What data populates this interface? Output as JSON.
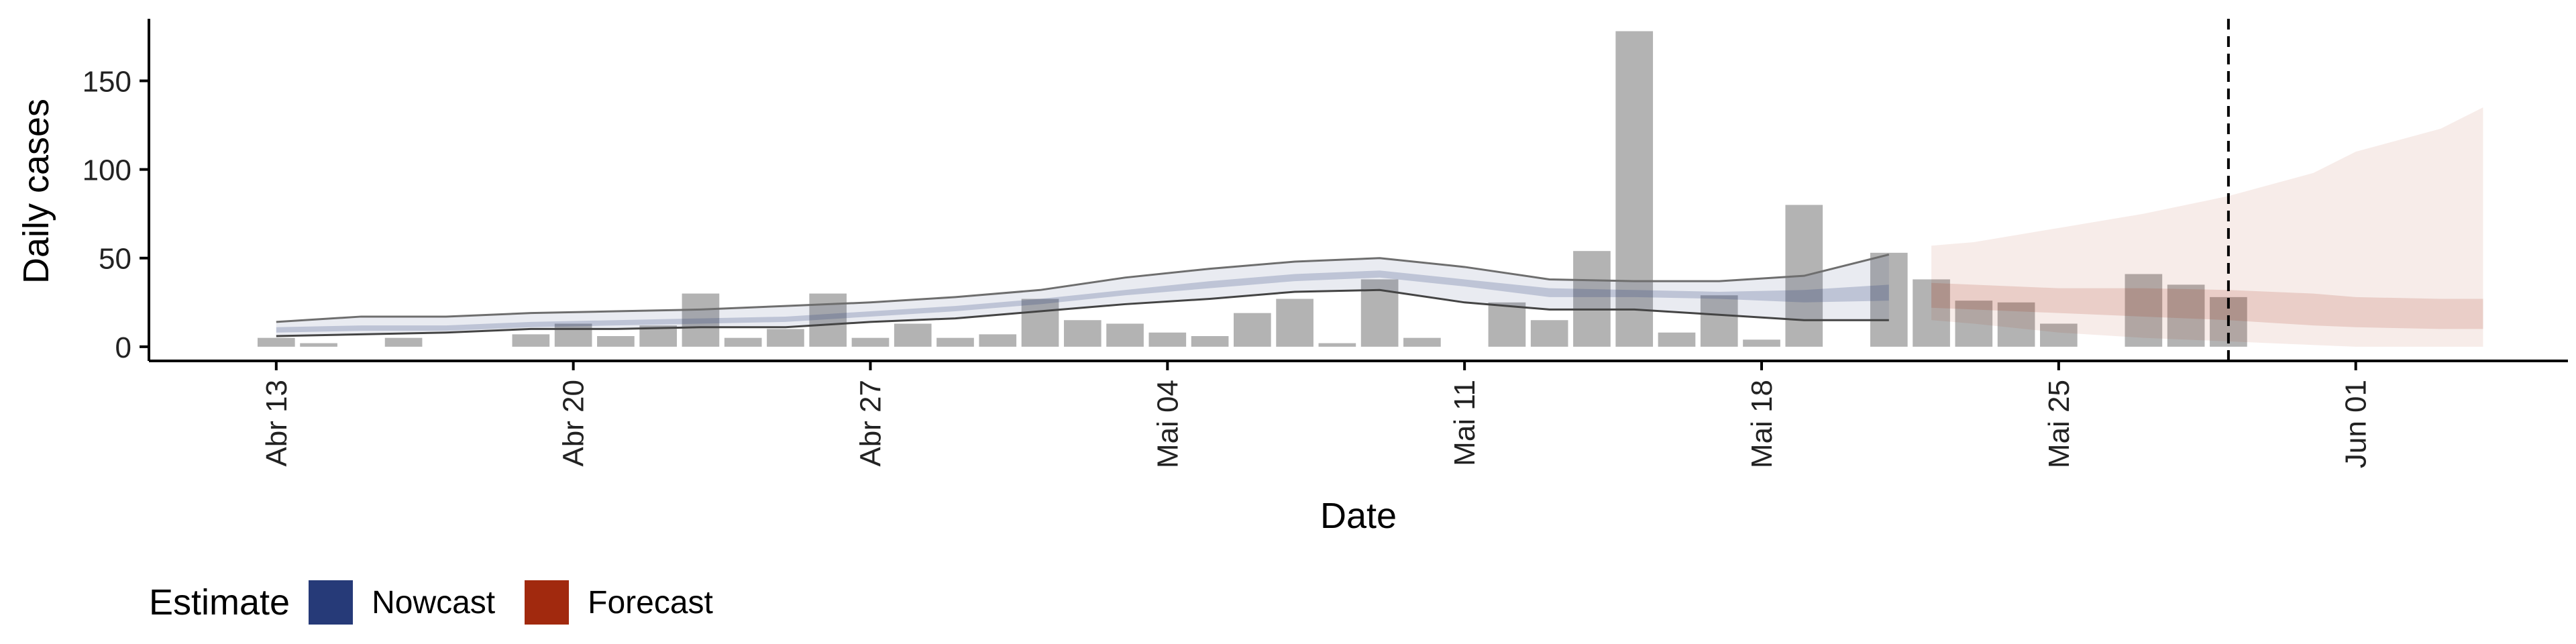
{
  "chart_data": {
    "type": "bar",
    "title": "",
    "xlabel": "Date",
    "ylabel": "Daily cases",
    "x_range": [
      "2020-04-10",
      "2020-06-06"
    ],
    "ylim": [
      -8,
      185
    ],
    "y_ticks": [
      0,
      50,
      100,
      150
    ],
    "x_ticks": [
      {
        "date": "2020-04-13",
        "label": "Abr 13"
      },
      {
        "date": "2020-04-20",
        "label": "Abr 20"
      },
      {
        "date": "2020-04-27",
        "label": "Abr 27"
      },
      {
        "date": "2020-05-04",
        "label": "Mai 04"
      },
      {
        "date": "2020-05-11",
        "label": "Mai 11"
      },
      {
        "date": "2020-05-18",
        "label": "Mai 18"
      },
      {
        "date": "2020-05-25",
        "label": "Mai 25"
      },
      {
        "date": "2020-06-01",
        "label": "Jun 01"
      }
    ],
    "vline_date": "2020-05-29",
    "reported_cases": {
      "dates": [
        "2020-04-13",
        "2020-04-14",
        "2020-04-15",
        "2020-04-16",
        "2020-04-17",
        "2020-04-18",
        "2020-04-19",
        "2020-04-20",
        "2020-04-21",
        "2020-04-22",
        "2020-04-23",
        "2020-04-24",
        "2020-04-25",
        "2020-04-26",
        "2020-04-27",
        "2020-04-28",
        "2020-04-29",
        "2020-04-30",
        "2020-05-01",
        "2020-05-02",
        "2020-05-03",
        "2020-05-04",
        "2020-05-05",
        "2020-05-06",
        "2020-05-07",
        "2020-05-08",
        "2020-05-09",
        "2020-05-10",
        "2020-05-11",
        "2020-05-12",
        "2020-05-13",
        "2020-05-14",
        "2020-05-15",
        "2020-05-16",
        "2020-05-17",
        "2020-05-18",
        "2020-05-19",
        "2020-05-20",
        "2020-05-21",
        "2020-05-22",
        "2020-05-23",
        "2020-05-24",
        "2020-05-25",
        "2020-05-26",
        "2020-05-27",
        "2020-05-28",
        "2020-05-29"
      ],
      "values": [
        5,
        2,
        0,
        5,
        0,
        0,
        7,
        13,
        6,
        12,
        30,
        5,
        10,
        30,
        5,
        13,
        5,
        7,
        27,
        15,
        13,
        8,
        6,
        19,
        27,
        2,
        38,
        5,
        0,
        25,
        15,
        54,
        178,
        8,
        29,
        4,
        80,
        0,
        53,
        38,
        26,
        25,
        13,
        0,
        41,
        35,
        28
      ]
    },
    "series": [
      {
        "name": "Nowcast",
        "color": "#263a78",
        "dates": [
          "2020-04-13",
          "2020-04-15",
          "2020-04-17",
          "2020-04-19",
          "2020-04-21",
          "2020-04-23",
          "2020-04-25",
          "2020-04-27",
          "2020-04-29",
          "2020-05-01",
          "2020-05-03",
          "2020-05-05",
          "2020-05-07",
          "2020-05-09",
          "2020-05-11",
          "2020-05-13",
          "2020-05-15",
          "2020-05-17",
          "2020-05-19",
          "2020-05-21"
        ],
        "upper_90": [
          14,
          17,
          17,
          19,
          20,
          21,
          23,
          25,
          28,
          32,
          39,
          44,
          48,
          50,
          45,
          38,
          37,
          37,
          40,
          52
        ],
        "upper_50": [
          11,
          12,
          12,
          14,
          15,
          16,
          17,
          20,
          23,
          27,
          32,
          37,
          41,
          43,
          38,
          33,
          32,
          31,
          32,
          35
        ],
        "lower_50": [
          8,
          9,
          9,
          11,
          12,
          13,
          14,
          17,
          20,
          24,
          29,
          33,
          37,
          39,
          34,
          28,
          28,
          27,
          25,
          26
        ],
        "lower_90": [
          6,
          7,
          8,
          10,
          10,
          11,
          11,
          14,
          16,
          20,
          24,
          27,
          31,
          32,
          25,
          21,
          21,
          18,
          15,
          15
        ]
      },
      {
        "name": "Forecast",
        "color": "#a1290e",
        "dates": [
          "2020-05-22",
          "2020-05-23",
          "2020-05-25",
          "2020-05-27",
          "2020-05-29",
          "2020-05-31",
          "2020-06-01",
          "2020-06-03",
          "2020-06-04"
        ],
        "upper_90": [
          57,
          59,
          67,
          75,
          85,
          98,
          110,
          123,
          135
        ],
        "upper_50": [
          36,
          35,
          33,
          33,
          32,
          30,
          28,
          27,
          27
        ],
        "lower_50": [
          22,
          21,
          19,
          17,
          15,
          12,
          11,
          10,
          10
        ],
        "lower_90": [
          15,
          13,
          8,
          5,
          3,
          1,
          0,
          0,
          0
        ]
      }
    ],
    "legend": {
      "title": "Estimate",
      "position": "bottom-left",
      "entries": [
        {
          "label": "Nowcast",
          "color": "#263a78"
        },
        {
          "label": "Forecast",
          "color": "#a1290e"
        }
      ]
    }
  }
}
